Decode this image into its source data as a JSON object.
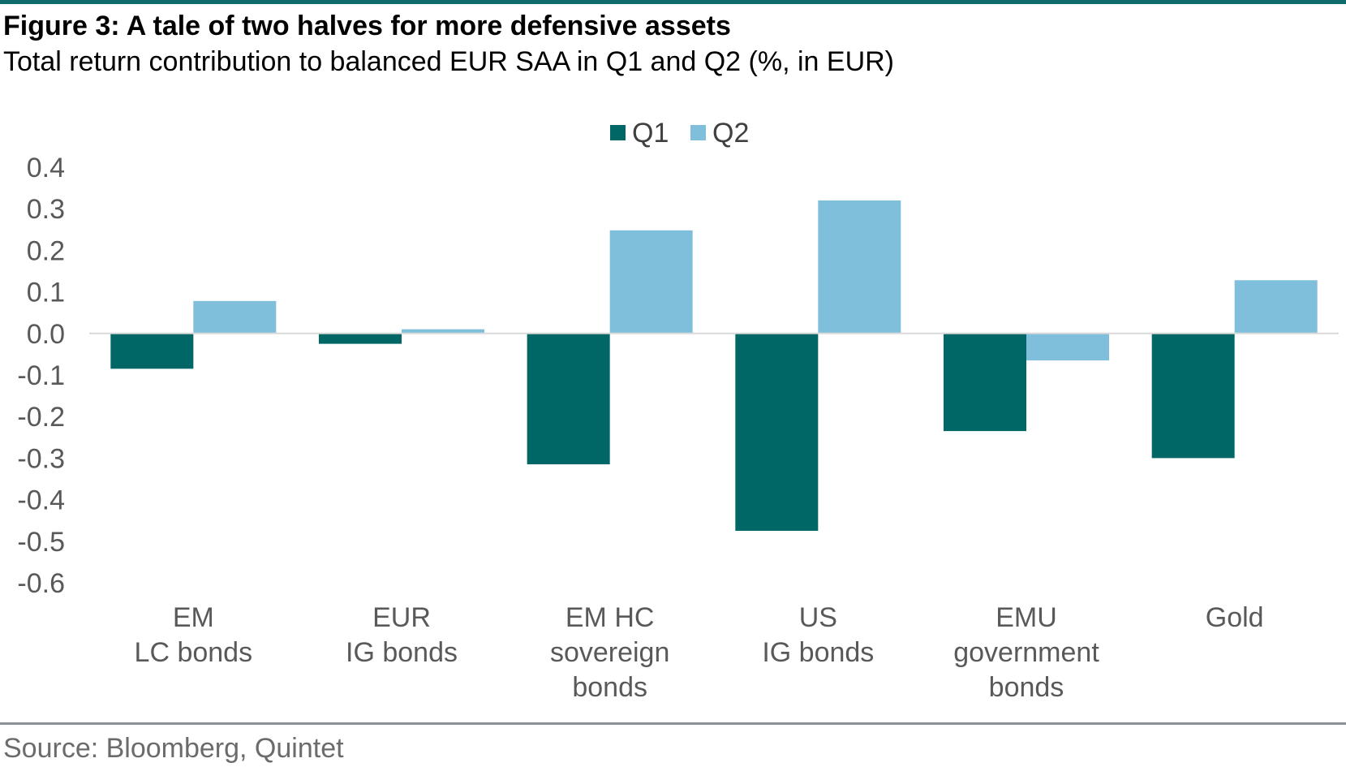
{
  "header": {
    "title": "Figure 3: A tale of two halves for more defensive assets",
    "subtitle": "Total return contribution to balanced EUR SAA in Q1 and Q2 (%, in EUR)"
  },
  "footer": {
    "source": "Source: Bloomberg, Quintet"
  },
  "colors": {
    "accent_rule": "#0d6b6b",
    "q1": "#006666",
    "q2": "#7fbfdc",
    "zero_line": "#d9d9d9",
    "bottom_rule": "#8a8f98"
  },
  "chart_data": {
    "type": "bar",
    "title": "Figure 3: A tale of two halves for more defensive assets",
    "subtitle": "Total return contribution to balanced EUR SAA in Q1 and Q2 (%, in EUR)",
    "categories": [
      [
        "EM",
        "LC bonds"
      ],
      [
        "EUR",
        "IG bonds"
      ],
      [
        "EM HC",
        "sovereign",
        "bonds"
      ],
      [
        "US",
        "IG bonds"
      ],
      [
        "EMU",
        "government",
        "bonds"
      ],
      [
        "Gold"
      ]
    ],
    "series": [
      {
        "name": "Q1",
        "color": "#006666",
        "values": [
          -0.085,
          -0.025,
          -0.315,
          -0.475,
          -0.235,
          -0.3
        ]
      },
      {
        "name": "Q2",
        "color": "#7fbfdc",
        "values": [
          0.078,
          0.01,
          0.248,
          0.32,
          -0.065,
          0.128
        ]
      }
    ],
    "ylim": [
      -0.6,
      0.4
    ],
    "yticks": [
      "0.4",
      "0.3",
      "0.2",
      "0.1",
      "0.0",
      "-0.1",
      "-0.2",
      "-0.3",
      "-0.4",
      "-0.5",
      "-0.6"
    ],
    "ytick_values": [
      0.4,
      0.3,
      0.2,
      0.1,
      0.0,
      -0.1,
      -0.2,
      -0.3,
      -0.4,
      -0.5,
      -0.6
    ],
    "xlabel": "",
    "ylabel": "",
    "grid": false,
    "legend": "top-center"
  }
}
